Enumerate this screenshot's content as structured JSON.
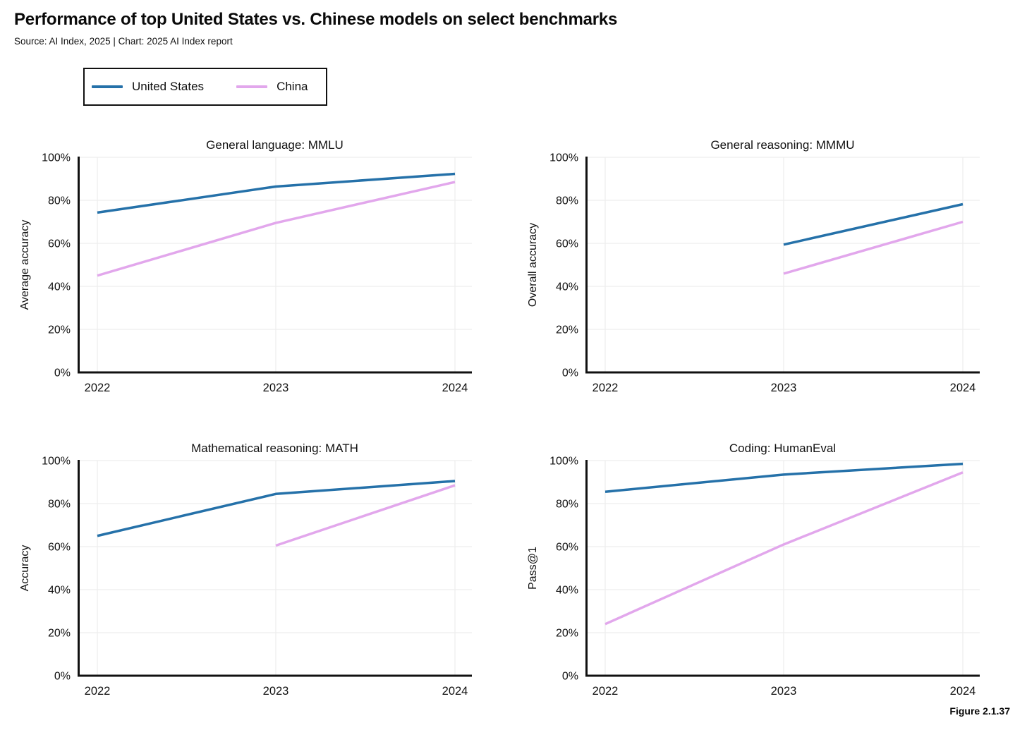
{
  "page": {
    "title": "Performance of top United States vs. Chinese models on select benchmarks",
    "subtitle": "Source: AI Index, 2025 | Chart: 2025 AI Index report",
    "figure_caption": "Figure 2.1.37"
  },
  "legend": {
    "position": "top-left",
    "items": [
      {
        "label": "United States",
        "color_key": "us_line"
      },
      {
        "label": "China",
        "color_key": "china_line"
      }
    ]
  },
  "colors": {
    "us_line": "#2571a9",
    "china_line": "#e2a7ec",
    "axis": "#111111",
    "grid": "#eeeeee",
    "text": "#111111",
    "background": "#ffffff"
  },
  "chart_data": [
    {
      "type": "line",
      "title": "General language: MMLU",
      "xlabel": "",
      "ylabel": "Average accuracy",
      "x_tick_labels": [
        "2022",
        "2023",
        "2024"
      ],
      "x_tick_values": [
        2022,
        2023,
        2024
      ],
      "y_tick_labels": [
        "0%",
        "20%",
        "40%",
        "60%",
        "80%",
        "100%"
      ],
      "y_tick_values": [
        0,
        20,
        40,
        60,
        80,
        100
      ],
      "ylim": [
        0,
        100
      ],
      "grid": true,
      "series": [
        {
          "name": "China",
          "color_key": "china_line",
          "x": [
            2022,
            2023,
            2024
          ],
          "values": [
            45.0,
            69.5,
            88.5
          ]
        },
        {
          "name": "United States",
          "color_key": "us_line",
          "x": [
            2022,
            2023,
            2024
          ],
          "values": [
            74.3,
            86.4,
            92.3
          ]
        }
      ]
    },
    {
      "type": "line",
      "title": "General reasoning: MMMU",
      "xlabel": "",
      "ylabel": "Overall accuracy",
      "x_tick_labels": [
        "2022",
        "2023",
        "2024"
      ],
      "x_tick_values": [
        2022,
        2023,
        2024
      ],
      "y_tick_labels": [
        "0%",
        "20%",
        "40%",
        "60%",
        "80%",
        "100%"
      ],
      "y_tick_values": [
        0,
        20,
        40,
        60,
        80,
        100
      ],
      "ylim": [
        0,
        100
      ],
      "grid": true,
      "series": [
        {
          "name": "China",
          "color_key": "china_line",
          "x": [
            2023,
            2024
          ],
          "values": [
            45.9,
            70.0
          ]
        },
        {
          "name": "United States",
          "color_key": "us_line",
          "x": [
            2023,
            2024
          ],
          "values": [
            59.4,
            78.2
          ]
        }
      ]
    },
    {
      "type": "line",
      "title": "Mathematical reasoning: MATH",
      "xlabel": "",
      "ylabel": "Accuracy",
      "x_tick_labels": [
        "2022",
        "2023",
        "2024"
      ],
      "x_tick_values": [
        2022,
        2023,
        2024
      ],
      "y_tick_labels": [
        "0%",
        "20%",
        "40%",
        "60%",
        "80%",
        "100%"
      ],
      "y_tick_values": [
        0,
        20,
        40,
        60,
        80,
        100
      ],
      "ylim": [
        0,
        100
      ],
      "grid": true,
      "series": [
        {
          "name": "China",
          "color_key": "china_line",
          "x": [
            2023,
            2024
          ],
          "values": [
            60.5,
            88.5
          ]
        },
        {
          "name": "United States",
          "color_key": "us_line",
          "x": [
            2022,
            2023,
            2024
          ],
          "values": [
            65.0,
            84.5,
            90.5
          ]
        }
      ]
    },
    {
      "type": "line",
      "title": "Coding: HumanEval",
      "xlabel": "",
      "ylabel": "Pass@1",
      "x_tick_labels": [
        "2022",
        "2023",
        "2024"
      ],
      "x_tick_values": [
        2022,
        2023,
        2024
      ],
      "y_tick_labels": [
        "0%",
        "20%",
        "40%",
        "60%",
        "80%",
        "100%"
      ],
      "y_tick_values": [
        0,
        20,
        40,
        60,
        80,
        100
      ],
      "ylim": [
        0,
        100
      ],
      "grid": true,
      "series": [
        {
          "name": "China",
          "color_key": "china_line",
          "x": [
            2022,
            2023,
            2024
          ],
          "values": [
            24.0,
            61.0,
            94.5
          ]
        },
        {
          "name": "United States",
          "color_key": "us_line",
          "x": [
            2022,
            2023,
            2024
          ],
          "values": [
            85.5,
            93.5,
            98.5
          ]
        }
      ]
    }
  ]
}
